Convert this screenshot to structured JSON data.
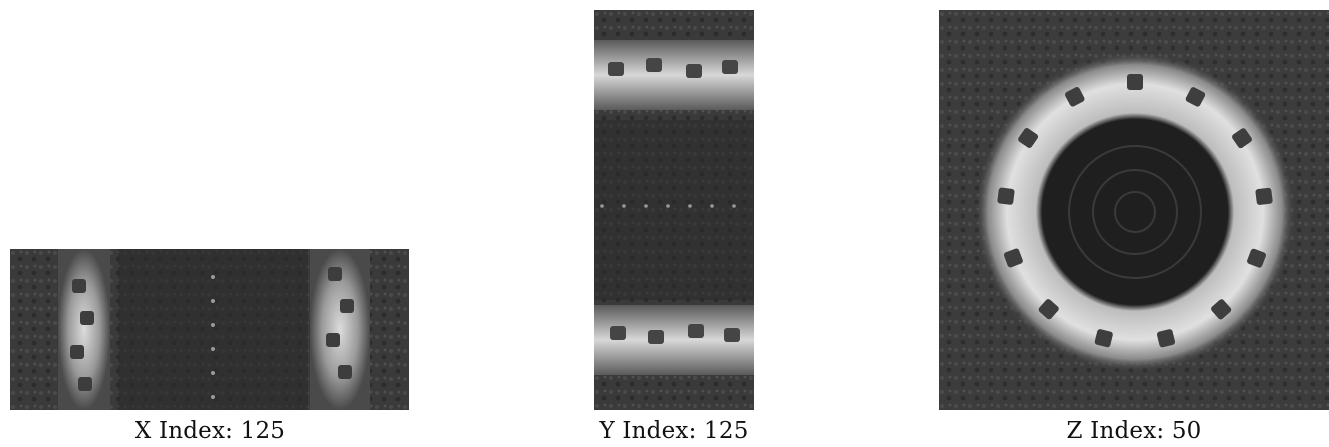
{
  "panels": [
    {
      "id": "x",
      "caption": "X Index: 125"
    },
    {
      "id": "y",
      "caption": "Y Index: 125"
    },
    {
      "id": "z",
      "caption": "Z Index: 50"
    }
  ]
}
